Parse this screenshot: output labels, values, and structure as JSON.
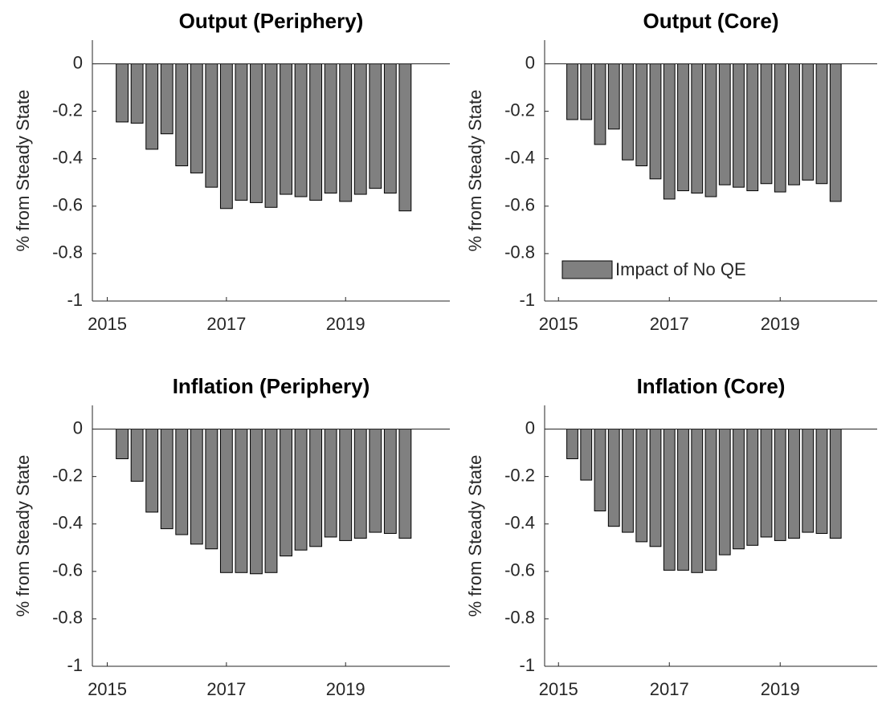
{
  "chart_data": [
    {
      "type": "bar",
      "title": "Output (Periphery)",
      "y_label": "% from Steady State",
      "x": [
        2015.25,
        2015.5,
        2015.75,
        2016,
        2016.25,
        2016.5,
        2016.75,
        2017,
        2017.25,
        2017.5,
        2017.75,
        2018,
        2018.25,
        2018.5,
        2018.75,
        2019,
        2019.25,
        2019.5,
        2019.75,
        2020
      ],
      "values": [
        -0.245,
        -0.25,
        -0.36,
        -0.295,
        -0.43,
        -0.46,
        -0.52,
        -0.61,
        -0.575,
        -0.585,
        -0.605,
        -0.55,
        -0.56,
        -0.575,
        -0.545,
        -0.58,
        -0.55,
        -0.525,
        -0.545,
        -0.62
      ],
      "color": "#808080",
      "xlim": [
        2014.75,
        2020.75
      ],
      "xticks": [
        2015,
        2017,
        2019
      ],
      "ylim": [
        -1,
        0.1
      ],
      "yticks": [
        -1,
        -0.8,
        -0.6,
        -0.4,
        -0.2,
        0
      ]
    },
    {
      "type": "bar",
      "title": "Output (Core)",
      "y_label": "% from Steady State",
      "x": [
        2015.25,
        2015.5,
        2015.75,
        2016,
        2016.25,
        2016.5,
        2016.75,
        2017,
        2017.25,
        2017.5,
        2017.75,
        2018,
        2018.25,
        2018.5,
        2018.75,
        2019,
        2019.25,
        2019.5,
        2019.75,
        2020
      ],
      "series": [
        {
          "name": "Impact of No QE",
          "color": "#808080",
          "values": [
            -0.235,
            -0.235,
            -0.34,
            -0.275,
            -0.405,
            -0.43,
            -0.485,
            -0.57,
            -0.535,
            -0.545,
            -0.56,
            -0.51,
            -0.52,
            -0.535,
            -0.505,
            -0.54,
            -0.51,
            -0.49,
            -0.505,
            -0.58
          ]
        }
      ],
      "legend": "lower left",
      "xlim": [
        2014.75,
        2020.75
      ],
      "xticks": [
        2015,
        2017,
        2019
      ],
      "ylim": [
        -1,
        0.1
      ],
      "yticks": [
        -1,
        -0.8,
        -0.6,
        -0.4,
        -0.2,
        0
      ]
    },
    {
      "type": "bar",
      "title": "Inflation (Periphery)",
      "y_label": "% from Steady State",
      "x": [
        2015.25,
        2015.5,
        2015.75,
        2016,
        2016.25,
        2016.5,
        2016.75,
        2017,
        2017.25,
        2017.5,
        2017.75,
        2018,
        2018.25,
        2018.5,
        2018.75,
        2019,
        2019.25,
        2019.5,
        2019.75,
        2020
      ],
      "values": [
        -0.125,
        -0.22,
        -0.35,
        -0.42,
        -0.445,
        -0.485,
        -0.505,
        -0.605,
        -0.605,
        -0.61,
        -0.605,
        -0.535,
        -0.51,
        -0.495,
        -0.455,
        -0.47,
        -0.46,
        -0.435,
        -0.44,
        -0.46
      ],
      "color": "#808080",
      "xlim": [
        2014.75,
        2020.75
      ],
      "xticks": [
        2015,
        2017,
        2019
      ],
      "ylim": [
        -1,
        0.1
      ],
      "yticks": [
        -1,
        -0.8,
        -0.6,
        -0.4,
        -0.2,
        0
      ]
    },
    {
      "type": "bar",
      "title": "Inflation (Core)",
      "y_label": "% from Steady State",
      "x": [
        2015.25,
        2015.5,
        2015.75,
        2016,
        2016.25,
        2016.5,
        2016.75,
        2017,
        2017.25,
        2017.5,
        2017.75,
        2018,
        2018.25,
        2018.5,
        2018.75,
        2019,
        2019.25,
        2019.5,
        2019.75,
        2020
      ],
      "values": [
        -0.125,
        -0.215,
        -0.345,
        -0.41,
        -0.435,
        -0.475,
        -0.495,
        -0.595,
        -0.595,
        -0.605,
        -0.595,
        -0.53,
        -0.505,
        -0.49,
        -0.455,
        -0.47,
        -0.46,
        -0.435,
        -0.44,
        -0.46
      ],
      "color": "#808080",
      "xlim": [
        2014.75,
        2020.75
      ],
      "xticks": [
        2015,
        2017,
        2019
      ],
      "ylim": [
        -1,
        0.1
      ],
      "yticks": [
        -1,
        -0.8,
        -0.6,
        -0.4,
        -0.2,
        0
      ]
    }
  ]
}
